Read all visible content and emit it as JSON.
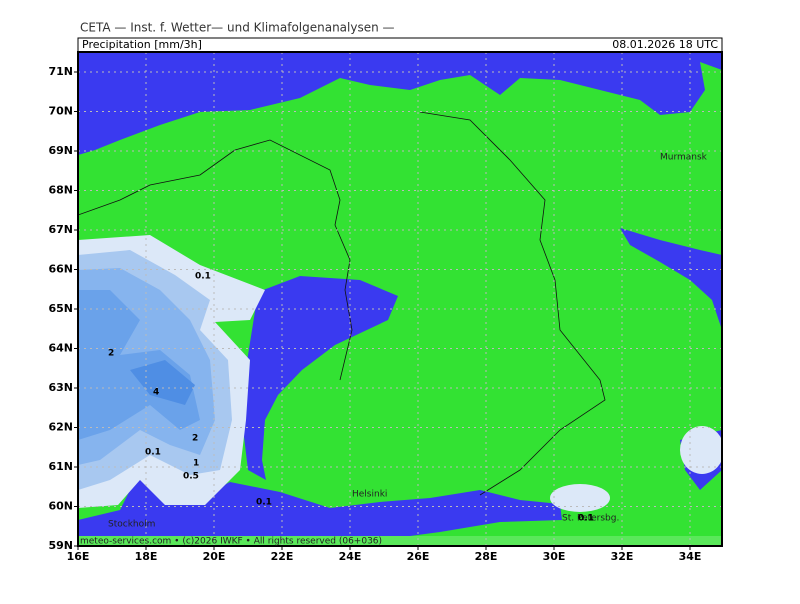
{
  "header": "CETA — Inst. f. Wetter— und Klimafolgenanalysen —",
  "title": "Precipitation [mm/3h]",
  "valid_time": "08.01.2026 18 UTC",
  "lat_labels": [
    "71N",
    "70N",
    "69N",
    "68N",
    "67N",
    "66N",
    "65N",
    "64N",
    "63N",
    "62N",
    "61N",
    "60N",
    "59N"
  ],
  "lon_labels": [
    "16E",
    "18E",
    "20E",
    "22E",
    "24E",
    "26E",
    "28E",
    "30E",
    "32E",
    "34E"
  ],
  "cities": [
    "Murmansk",
    "Helsinki",
    "Stockholm",
    "St. Petersbg."
  ],
  "contour_labels": [
    0.1,
    2,
    4,
    2,
    1,
    0.5,
    0.1,
    0.1,
    0.1
  ],
  "footer": "meteo-services.com • (c)2026 IWKF • All rights reserved (06+036)"
}
